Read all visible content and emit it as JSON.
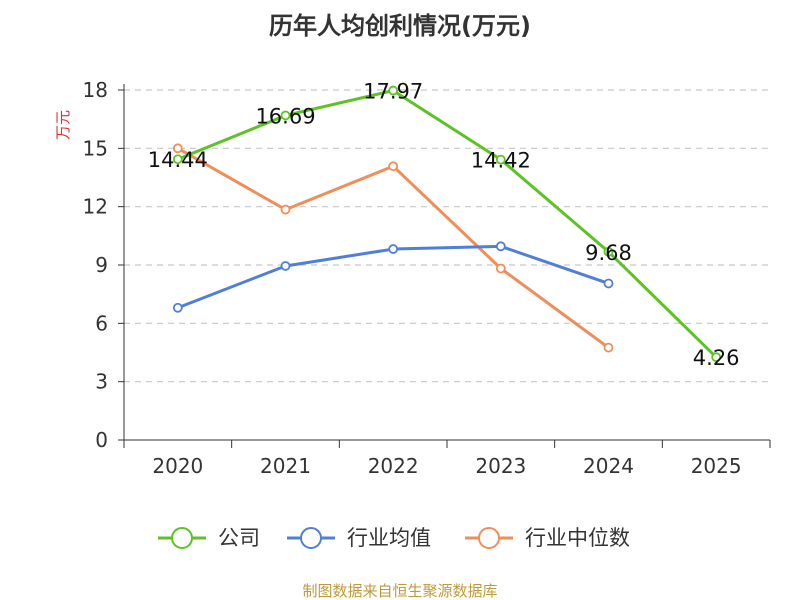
{
  "chart_data": {
    "type": "line",
    "title": "历年人均创利情况(万元)",
    "ylabel": "万元",
    "xlabel": "",
    "categories": [
      "2020",
      "2021",
      "2022",
      "2023",
      "2024",
      "2025"
    ],
    "ylim": [
      0,
      18
    ],
    "yticks": [
      "0",
      "3",
      "6",
      "9",
      "12",
      "15",
      "18"
    ],
    "grid": true,
    "legend_position": "bottom",
    "series": [
      {
        "name": "公司",
        "color": "#5cc323",
        "values": [
          14.44,
          16.69,
          17.97,
          14.42,
          9.68,
          4.26
        ],
        "labels": [
          "14.44",
          "16.69",
          "17.97",
          "14.42",
          "9.68",
          "4.26"
        ]
      },
      {
        "name": "行业均值",
        "color": "#4f7fd8",
        "values": [
          6.8,
          8.95,
          9.82,
          9.96,
          8.05,
          null
        ]
      },
      {
        "name": "行业中位数",
        "color": "#f08e5a",
        "values": [
          15.0,
          11.85,
          14.08,
          8.82,
          4.75,
          null
        ]
      }
    ],
    "source": "制图数据来自恒生聚源数据库",
    "ylabel_color": "#e03030",
    "source_color": "#c09a3a"
  }
}
